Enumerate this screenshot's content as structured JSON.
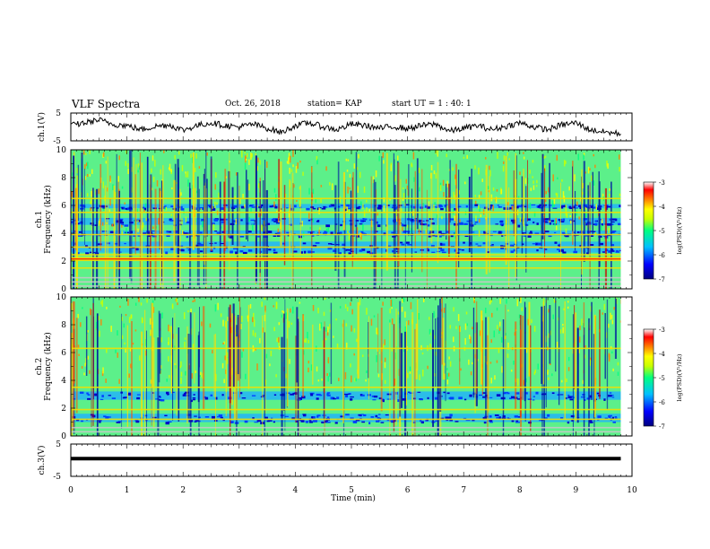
{
  "header": {
    "title": "VLF Spectra",
    "date": "Oct. 26, 2018",
    "station": "station= KAP",
    "start_ut": "start  UT  =   1 : 40: 1"
  },
  "chart_data": [
    {
      "type": "line",
      "panel": "ch1-waveform",
      "ylabel": "ch.1(V)",
      "ylim": [
        -5,
        5
      ],
      "yticks": [
        "5",
        "-5"
      ],
      "xlim": [
        0,
        10
      ],
      "x_extent_min": 9.8,
      "series": [
        {
          "values_min": [
            0,
            0.25,
            0.5,
            0.75,
            1.0,
            1.25,
            1.5,
            1.75,
            2.0,
            2.25,
            2.5,
            2.75,
            3.0,
            3.25,
            3.5,
            3.75,
            4.0,
            4.25,
            4.5,
            4.75,
            5.0,
            5.25,
            5.5,
            5.75,
            6.0,
            6.25,
            6.5,
            6.75,
            7.0,
            7.25,
            7.5,
            7.75,
            8.0,
            8.25,
            8.5,
            8.75,
            9.0,
            9.25,
            9.5,
            9.8
          ],
          "values_v": [
            0.5,
            1.5,
            2.5,
            1.0,
            0.5,
            -1.0,
            0.2,
            0.8,
            -1.2,
            0.5,
            1.5,
            0.5,
            0.0,
            1.0,
            -0.5,
            -2.0,
            0.5,
            1.5,
            0.0,
            -1.0,
            1.0,
            0.5,
            -0.5,
            0.2,
            -0.6,
            0.5,
            1.0,
            -1.5,
            -0.5,
            0.5,
            -1.0,
            0.2,
            1.5,
            0.0,
            -1.0,
            0.8,
            1.5,
            -1.0,
            -1.8,
            -2.5
          ]
        }
      ]
    },
    {
      "type": "heatmap",
      "panel": "ch1-spectrogram",
      "ylabel": "ch.1\nFrequency (kHz)",
      "ylim": [
        0,
        10
      ],
      "yticks": [
        "0",
        "2",
        "4",
        "6",
        "8",
        "10"
      ],
      "xlim": [
        0,
        10
      ],
      "x_extent_min": 9.8,
      "colorbar": {
        "label": "log(PSD)(V²/Hz)",
        "range": [
          -7,
          -3
        ],
        "ticks": [
          "-3",
          "-4",
          "-5",
          "-6",
          "-7"
        ],
        "colors": [
          "#00007f",
          "#0000ff",
          "#00c0ff",
          "#00ff80",
          "#c8ff00",
          "#ffff00",
          "#ff8000",
          "#ff0000",
          "#ffffff"
        ]
      },
      "horizontal_lines_khz": [
        0.2,
        0.5,
        0.8,
        1.5,
        2.05,
        2.25,
        2.45,
        3.0,
        3.9,
        5.5,
        6.5
      ],
      "low_intensity_bands_khz": [
        [
          2.6,
          3.4
        ],
        [
          3.8,
          4.2
        ],
        [
          4.6,
          5.1
        ],
        [
          5.8,
          6.1
        ]
      ]
    },
    {
      "type": "heatmap",
      "panel": "ch2-spectrogram",
      "ylabel": "ch.2\nFrequency (kHz)",
      "ylim": [
        0,
        10
      ],
      "yticks": [
        "0",
        "2",
        "4",
        "6",
        "8",
        "10"
      ],
      "xlim": [
        0,
        10
      ],
      "x_extent_min": 9.8,
      "colorbar": {
        "label": "log(PSD)(V²/Hz)",
        "range": [
          -7,
          -3
        ],
        "ticks": [
          "-3",
          "-4",
          "-5",
          "-6",
          "-7"
        ]
      },
      "horizontal_lines_khz": [
        0.3,
        0.6,
        1.2,
        1.9,
        3.5,
        6.3
      ],
      "low_intensity_bands_khz": [
        [
          2.6,
          3.2
        ],
        [
          1.0,
          1.6
        ]
      ]
    },
    {
      "type": "line",
      "panel": "ch3-waveform",
      "ylabel": "ch.3(V)",
      "ylim": [
        -5,
        5
      ],
      "yticks": [
        "5",
        "-5"
      ],
      "xlim": [
        0,
        10
      ],
      "x_extent_min": 9.8,
      "series": [
        {
          "values_min": [
            0,
            9.8
          ],
          "values_v": [
            0.5,
            0.5
          ]
        }
      ]
    }
  ],
  "x_axis": {
    "label": "Time  (min)",
    "ticks": [
      "0",
      "1",
      "2",
      "3",
      "4",
      "5",
      "6",
      "7",
      "8",
      "9",
      "10"
    ]
  }
}
